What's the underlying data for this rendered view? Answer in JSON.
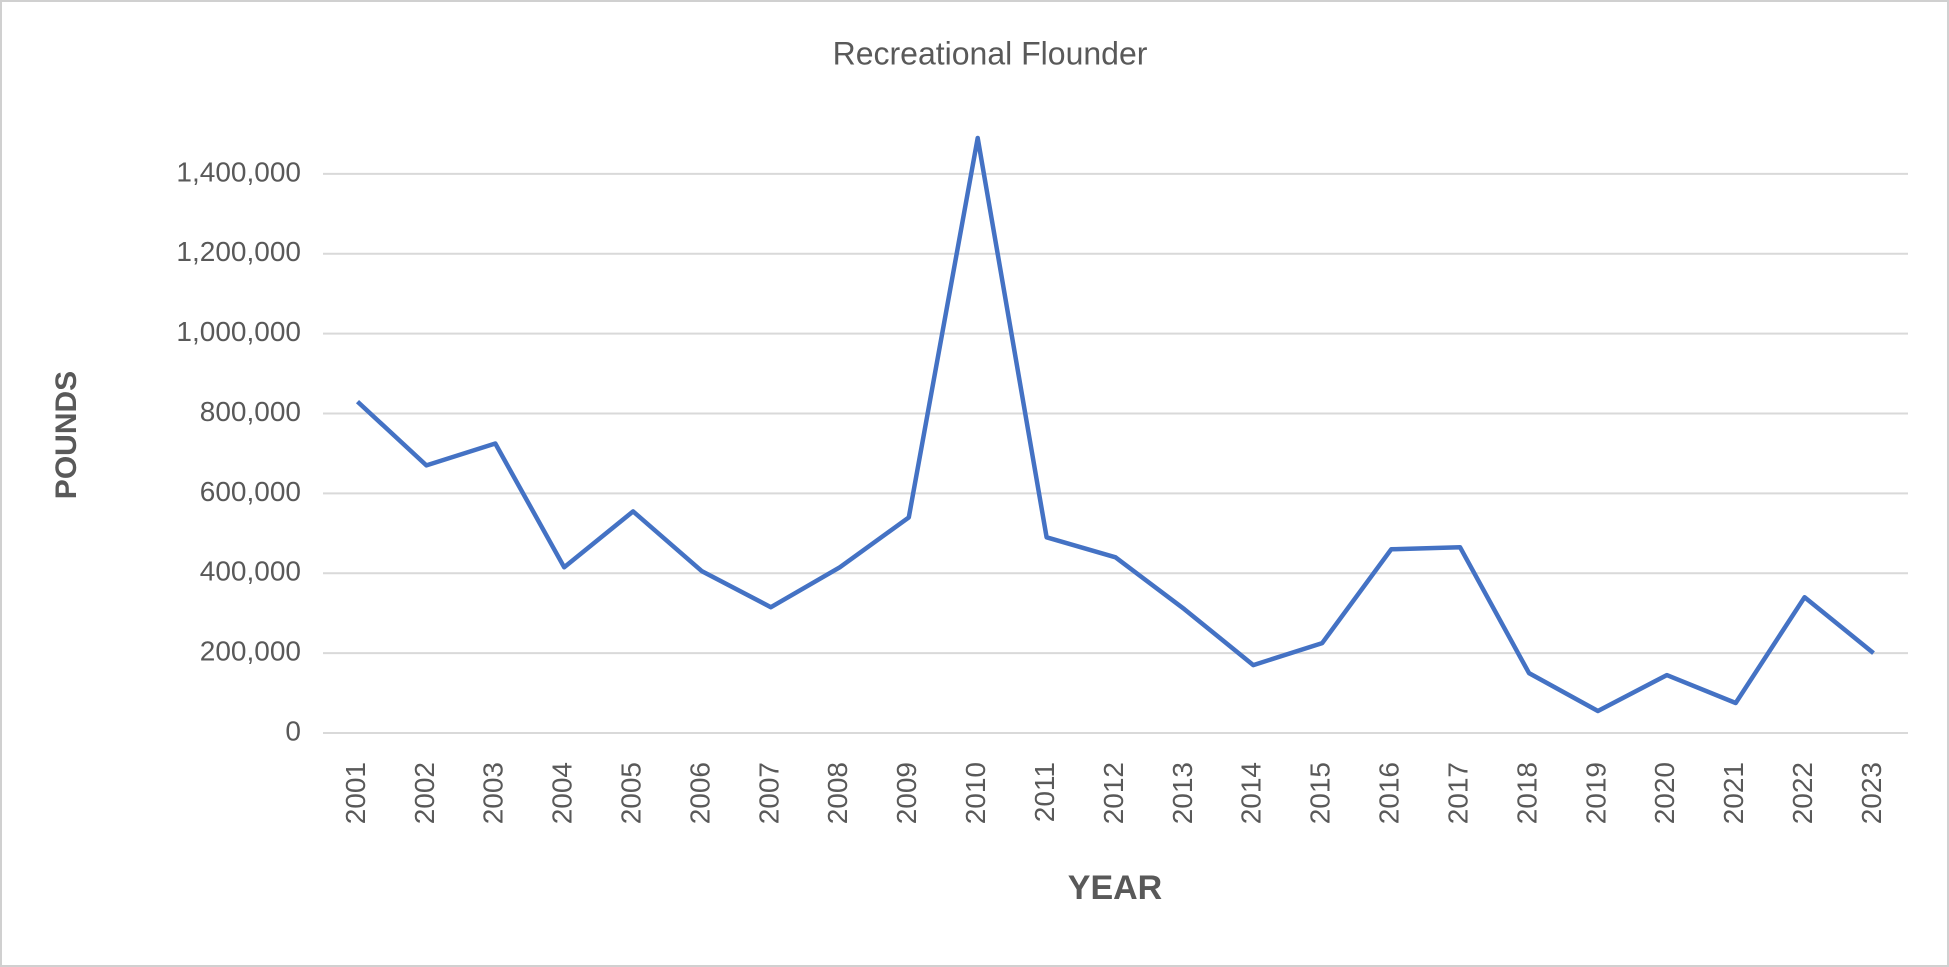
{
  "chart_data": {
    "type": "line",
    "title": "Recreational Flounder",
    "x_label": "YEAR",
    "y_label": "POUNDS",
    "categories": [
      "2001",
      "2002",
      "2003",
      "2004",
      "2005",
      "2006",
      "2007",
      "2008",
      "2009",
      "2010",
      "2011",
      "2012",
      "2013",
      "2014",
      "2015",
      "2016",
      "2017",
      "2018",
      "2019",
      "2020",
      "2021",
      "2022",
      "2023"
    ],
    "values": [
      830000,
      670000,
      725000,
      415000,
      555000,
      405000,
      315000,
      415000,
      540000,
      1490000,
      490000,
      440000,
      310000,
      170000,
      225000,
      460000,
      465000,
      150000,
      55000,
      145000,
      75000,
      340000,
      200000
    ],
    "color": "#4472c4",
    "ylim": [
      0,
      1500000
    ],
    "yticks": [
      0,
      {
        "value": 200000,
        "label": "200,000"
      },
      {
        "value": 400000,
        "label": "400,000"
      },
      {
        "value": 600000,
        "label": "600,000"
      },
      {
        "value": 800000,
        "label": "800,000"
      },
      {
        "value": 1000000,
        "label": "1,000,000"
      },
      {
        "value": 1200000,
        "label": "1,200,000"
      },
      {
        "value": 1400000,
        "label": "1,400,000"
      }
    ],
    "grid": true
  }
}
